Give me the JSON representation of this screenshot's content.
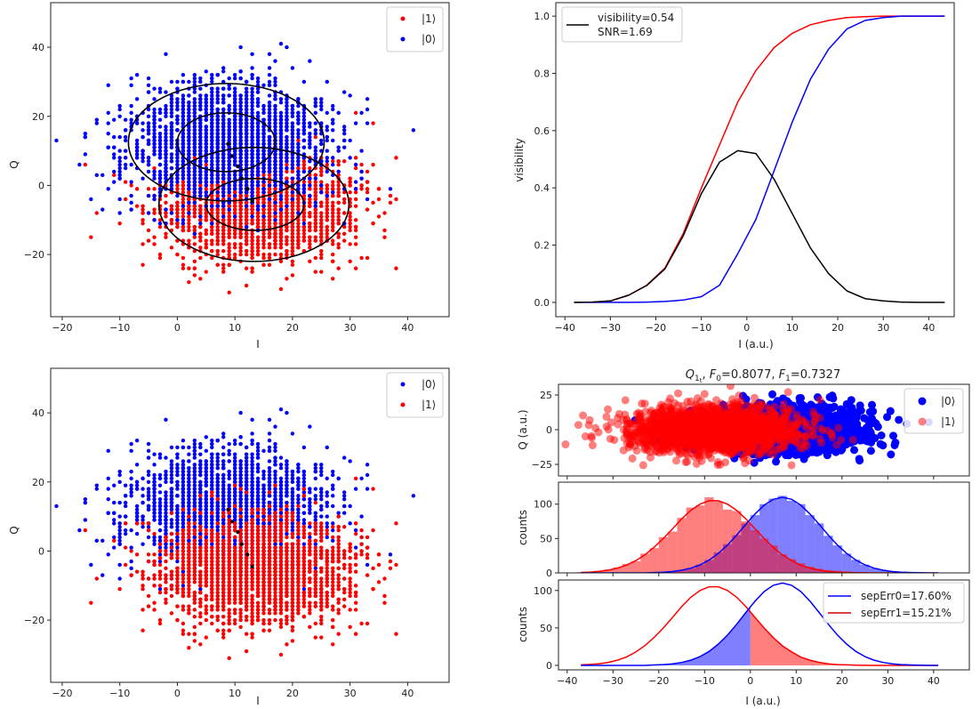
{
  "colors": {
    "state0": "#0000ff",
    "state1": "#ff0000",
    "visibility": "#000000"
  },
  "chart_data": [
    {
      "id": "iq-scatter-top",
      "type": "scatter",
      "xlabel": "I",
      "ylabel": "Q",
      "xlim": [
        -22,
        47.2
      ],
      "ylim": [
        -38,
        52.9
      ],
      "xticks": [
        -20,
        -10,
        0,
        10,
        20,
        30,
        40
      ],
      "yticks": [
        -20,
        0,
        20,
        40
      ],
      "legend": {
        "placement": "top-right",
        "entries": [
          "|1⟩",
          "|0⟩"
        ]
      },
      "clusters": [
        {
          "state": "|1⟩",
          "color": "#ff0000",
          "center": [
            13.5,
            -5.5
          ],
          "sigma": [
            8.5,
            7.8
          ]
        },
        {
          "state": "|0⟩",
          "color": "#0000ff",
          "center": [
            8.5,
            12.5
          ],
          "sigma": [
            8.5,
            8.5
          ]
        }
      ],
      "ellipses": [
        {
          "state": "|0⟩",
          "center": [
            8.5,
            12.5
          ],
          "radii": [
            8.5,
            8.5
          ]
        },
        {
          "state": "|0⟩",
          "center": [
            8.5,
            12.5
          ],
          "radii": [
            17,
            17
          ]
        },
        {
          "state": "|1⟩",
          "center": [
            13.5,
            -5.5
          ],
          "radii": [
            8.5,
            7.5
          ]
        },
        {
          "state": "|1⟩",
          "center": [
            13.3,
            -5.5
          ],
          "radii": [
            16.5,
            16.5
          ]
        }
      ],
      "midpoints": [
        [
          8.8,
          12
        ],
        [
          9.5,
          8.5
        ],
        [
          10.5,
          5.5
        ],
        [
          11.2,
          2
        ],
        [
          12.2,
          -1
        ],
        [
          13,
          -4.5
        ]
      ]
    },
    {
      "id": "visibility",
      "type": "line",
      "xlabel": "I (a.u.)",
      "ylabel": "visibility",
      "xlim": [
        -42,
        45.6
      ],
      "ylim": [
        -0.05,
        1.047
      ],
      "xticks": [
        -40,
        -30,
        -20,
        -10,
        0,
        10,
        20,
        30,
        40
      ],
      "yticks": [
        0.0,
        0.2,
        0.4,
        0.6,
        0.8,
        1.0
      ],
      "legend": {
        "placement": "top-left",
        "line1": "visibility=0.54",
        "line2": "SNR=1.69"
      },
      "x": [
        -38,
        -34,
        -30,
        -26,
        -22,
        -18,
        -14,
        -10,
        -6,
        -2,
        2,
        6,
        10,
        14,
        18,
        22,
        26,
        30,
        34,
        38,
        43.5
      ],
      "series": [
        {
          "color": "#ff0000",
          "values": [
            0,
            0.001,
            0.005,
            0.025,
            0.06,
            0.12,
            0.24,
            0.4,
            0.55,
            0.7,
            0.81,
            0.89,
            0.94,
            0.97,
            0.985,
            0.995,
            0.998,
            1,
            1,
            1,
            1
          ]
        },
        {
          "color": "#0000ff",
          "values": [
            0,
            0,
            0,
            0,
            0.001,
            0.003,
            0.008,
            0.02,
            0.06,
            0.17,
            0.29,
            0.46,
            0.63,
            0.78,
            0.885,
            0.955,
            0.985,
            0.995,
            1,
            1,
            1
          ]
        },
        {
          "name": "visibility=0.54",
          "color": "#000000",
          "values": [
            0,
            0.001,
            0.005,
            0.025,
            0.059,
            0.117,
            0.232,
            0.38,
            0.49,
            0.53,
            0.52,
            0.43,
            0.31,
            0.19,
            0.1,
            0.04,
            0.013,
            0.005,
            0.001,
            0,
            0
          ]
        }
      ]
    },
    {
      "id": "iq-scatter-bottom",
      "type": "scatter",
      "xlabel": "I",
      "ylabel": "Q",
      "xlim": [
        -22,
        47.2
      ],
      "ylim": [
        -38,
        52.9
      ],
      "xticks": [
        -20,
        -10,
        0,
        10,
        20,
        30,
        40
      ],
      "yticks": [
        -20,
        0,
        20,
        40
      ],
      "legend": {
        "placement": "top-right",
        "entries": [
          "|0⟩",
          "|1⟩"
        ]
      },
      "midpoints": [
        [
          8.8,
          12
        ],
        [
          9.5,
          8.5
        ],
        [
          10.5,
          5.5
        ],
        [
          11.2,
          2
        ],
        [
          12.2,
          -1
        ],
        [
          13,
          -4.5
        ]
      ]
    },
    {
      "id": "rotated-scatter",
      "type": "scatter",
      "title": {
        "q": "Q",
        "q_sub": "1",
        "q_subsub": "t",
        "sep": ", ",
        "f": "F",
        "f0_sub": "0",
        "f0_val": "=0.8077",
        "f1_sub": "1",
        "f1_val": "=0.7327"
      },
      "ylabel": "Q (a.u.)",
      "xlim": [
        -41.9,
        47.8
      ],
      "ylim": [
        -33.3,
        32.7
      ],
      "yticks": [
        -25,
        0,
        25
      ],
      "legend": {
        "placement": "top-right",
        "entries": [
          "|0⟩",
          "|1⟩"
        ]
      },
      "clusters": [
        {
          "state": "|0⟩",
          "color": "#0000ff",
          "center": [
            7,
            0
          ],
          "sigma": [
            8.5,
            8
          ]
        },
        {
          "state": "|1⟩",
          "color": "#ff0000",
          "center": [
            -8,
            0
          ],
          "sigma": [
            9,
            8
          ]
        }
      ]
    },
    {
      "id": "histogram",
      "type": "bar",
      "ylabel": "counts",
      "xlim": [
        -41.9,
        47.8
      ],
      "ylim": [
        0,
        132
      ],
      "yticks": [
        0,
        50,
        100
      ],
      "bin_start": -38,
      "bin_width": 2,
      "series": [
        {
          "state": "|1⟩",
          "color": "#ff0000",
          "counts": [
            1,
            1,
            3,
            5,
            8,
            13,
            17,
            28,
            36,
            52,
            60,
            80,
            95,
            98,
            110,
            104,
            92,
            90,
            75,
            62,
            50,
            40,
            27,
            20,
            14,
            9,
            6,
            4,
            3,
            2,
            1,
            1,
            0,
            0,
            0,
            0,
            0,
            0,
            0,
            0
          ],
          "fit": [
            0.6,
            1.2,
            2.2,
            4,
            7,
            11.4,
            17.9,
            26.4,
            37.4,
            50,
            64,
            78.5,
            91,
            100,
            105,
            105,
            100,
            91,
            78.5,
            64,
            50,
            37,
            26,
            18,
            11,
            7,
            4,
            2,
            1,
            0.6,
            0.3,
            0.1,
            0,
            0,
            0,
            0,
            0,
            0,
            0,
            0
          ]
        },
        {
          "state": "|0⟩",
          "color": "#0000ff",
          "counts": [
            0,
            0,
            0,
            0,
            0,
            0,
            0,
            0,
            1,
            1,
            2,
            4,
            7,
            12,
            19,
            30,
            42,
            55,
            72,
            84,
            100,
            108,
            112,
            105,
            100,
            84,
            72,
            54,
            40,
            28,
            19,
            12,
            7,
            4,
            2,
            1,
            1,
            0,
            0,
            0
          ],
          "fit": [
            0,
            0,
            0,
            0,
            0,
            0,
            0,
            0,
            0.5,
            1,
            2,
            3.9,
            6.9,
            11.7,
            18.7,
            28.4,
            40.5,
            55,
            70.6,
            85.7,
            98.5,
            107,
            110,
            107,
            98.5,
            85.7,
            70.6,
            55,
            40.5,
            28.4,
            18.7,
            11.7,
            6.9,
            3.9,
            2,
            1,
            0.5,
            0.2,
            0,
            0
          ]
        }
      ]
    },
    {
      "id": "separation",
      "type": "area",
      "xlabel": "I (a.u.)",
      "ylabel": "counts",
      "xlim": [
        -41.9,
        47.8
      ],
      "ylim": [
        -6,
        114
      ],
      "xticks": [
        -40,
        -30,
        -20,
        -10,
        0,
        10,
        20,
        30,
        40
      ],
      "yticks": [
        0,
        50,
        100
      ],
      "threshold": 0,
      "legend": {
        "placement": "top-right",
        "entries": [
          "sepErr0=17.60%",
          "sepErr1=15.21%"
        ]
      }
    }
  ]
}
